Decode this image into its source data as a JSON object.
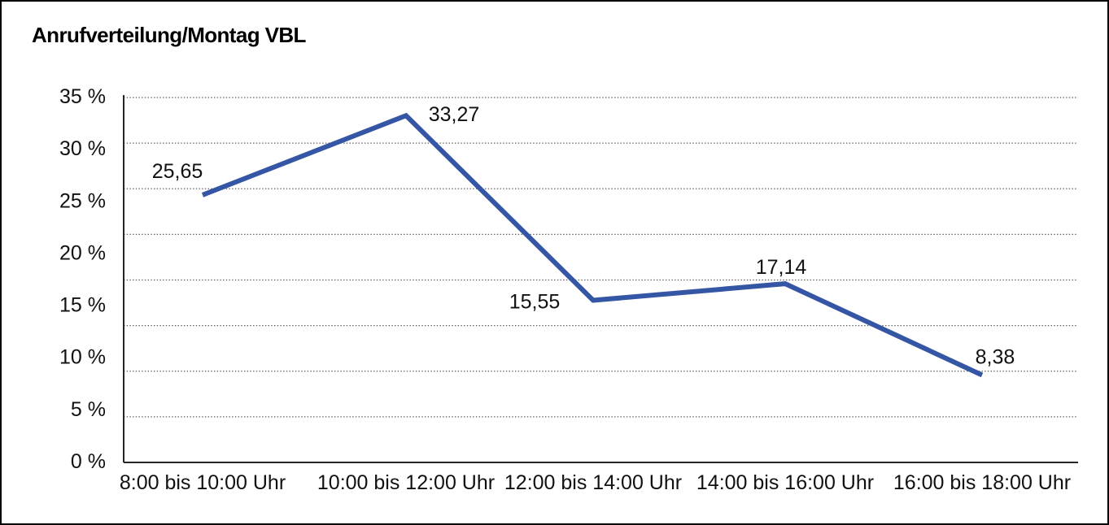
{
  "title": "Anrufverteilung/Montag VBL",
  "chart_data": {
    "type": "line",
    "title": "Anrufverteilung/Montag VBL",
    "categories": [
      "8:00 bis 10:00 Uhr",
      "10:00 bis 12:00 Uhr",
      "12:00 bis 14:00 Uhr",
      "14:00 bis 16:00 Uhr",
      "16:00 bis 18:00 Uhr"
    ],
    "values": [
      25.65,
      33.27,
      15.55,
      17.14,
      8.38
    ],
    "value_labels": [
      "25,65",
      "33,27",
      "15,55",
      "17,14",
      "8,38"
    ],
    "unit": "%",
    "xlabel": "",
    "ylabel": "",
    "ylim": [
      0,
      35
    ],
    "ytick_step": 5,
    "ytick_labels": [
      "0 %",
      "5 %",
      "10 %",
      "15 %",
      "20 %",
      "25 %",
      "30 %",
      "35 %"
    ],
    "grid": "dotted-horizontal",
    "legend": "none"
  },
  "colors": {
    "line": "#3556A4",
    "grid": "#595959",
    "axis": "#262626",
    "text": "#111111",
    "background": "#ffffff",
    "border": "#000000"
  }
}
